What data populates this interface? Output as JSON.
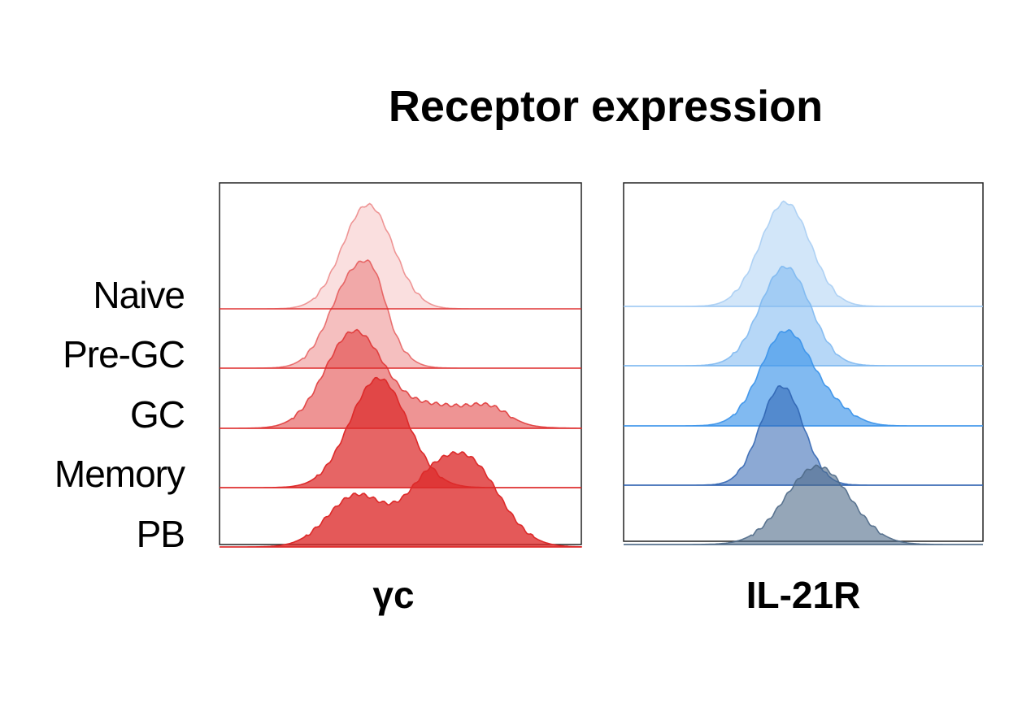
{
  "title": "Receptor expression",
  "row_labels": [
    "Naive",
    "Pre-GC",
    "GC",
    "Memory",
    "PB"
  ],
  "chart_data": [
    {
      "type": "area",
      "xlabel": "γc",
      "ylabel": "",
      "x_range": [
        0,
        100
      ],
      "color": "#dd2a2a",
      "series": [
        {
          "name": "Naive",
          "opacity": 0.15,
          "peaks": [
            {
              "center": 41,
              "width": 7,
              "height": 1.0
            }
          ]
        },
        {
          "name": "Pre-GC",
          "opacity": 0.3,
          "peaks": [
            {
              "center": 38,
              "width": 7,
              "height": 0.95
            },
            {
              "center": 43,
              "width": 3,
              "height": 0.2
            }
          ]
        },
        {
          "name": "GC",
          "opacity": 0.5,
          "peaks": [
            {
              "center": 37,
              "width": 8,
              "height": 0.9
            },
            {
              "center": 60,
              "width": 12,
              "height": 0.22
            },
            {
              "center": 75,
              "width": 5,
              "height": 0.12
            }
          ]
        },
        {
          "name": "Memory",
          "opacity": 0.72,
          "peaks": [
            {
              "center": 44,
              "width": 8,
              "height": 1.05
            }
          ]
        },
        {
          "name": "PB",
          "opacity": 0.78,
          "peaks": [
            {
              "center": 38,
              "width": 8,
              "height": 0.5
            },
            {
              "center": 68,
              "width": 9,
              "height": 0.85
            },
            {
              "center": 56,
              "width": 6,
              "height": 0.3
            }
          ]
        }
      ]
    },
    {
      "type": "area",
      "xlabel": "IL-21R",
      "ylabel": "",
      "x_range": [
        0,
        100
      ],
      "colors": [
        "#9cc7f2",
        "#7ab6f0",
        "#3d95ea",
        "#2d62b0",
        "#4f6a88"
      ],
      "series": [
        {
          "name": "Naive",
          "opacity": 0.45,
          "peaks": [
            {
              "center": 45,
              "width": 7,
              "height": 1.0
            }
          ]
        },
        {
          "name": "Pre-GC",
          "opacity": 0.55,
          "peaks": [
            {
              "center": 45,
              "width": 7,
              "height": 0.95
            }
          ]
        },
        {
          "name": "GC",
          "opacity": 0.65,
          "peaks": [
            {
              "center": 45,
              "width": 7,
              "height": 0.9
            },
            {
              "center": 58,
              "width": 6,
              "height": 0.15
            }
          ]
        },
        {
          "name": "Memory",
          "opacity": 0.55,
          "peaks": [
            {
              "center": 44,
              "width": 6,
              "height": 0.95
            }
          ]
        },
        {
          "name": "PB",
          "opacity": 0.6,
          "peaks": [
            {
              "center": 54,
              "width": 9,
              "height": 0.75
            }
          ]
        }
      ]
    }
  ]
}
